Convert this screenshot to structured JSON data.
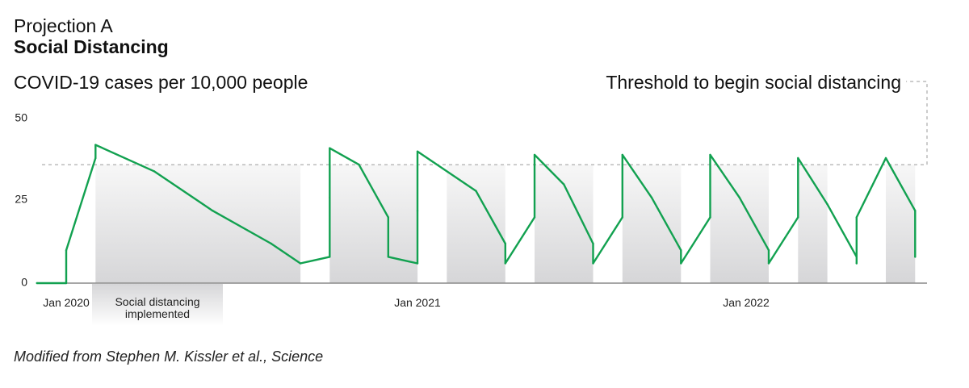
{
  "header": {
    "kicker": "Projection A",
    "title": "Social Distancing"
  },
  "source": "Modified from Stephen M. Kissler et al., Science",
  "colors": {
    "line": "#12a150",
    "band_top": "#f7f7f7",
    "band_bottom": "#d6d6d8",
    "axis": "#888888",
    "threshold": "#9a9a9a"
  },
  "chart_data": {
    "type": "line",
    "ylabel": "COVID-19 cases per 10,000 people",
    "ylim": [
      0,
      50
    ],
    "y_ticks": [
      "0",
      "25",
      "50"
    ],
    "x_ticks": [
      "Jan 2020",
      "Jan 2021",
      "Jan 2022"
    ],
    "threshold": {
      "label": "Threshold to begin social distancing",
      "value": 36
    },
    "band_annotation": {
      "line1": "Social distancing",
      "line2": "implemented"
    },
    "series": [
      {
        "points": [
          [
            "2019-12",
            0
          ],
          [
            "2020-01",
            0
          ],
          [
            "2020-01",
            10
          ],
          [
            "2020-02",
            38
          ],
          [
            "2020-02",
            42
          ],
          [
            "2020-04",
            34
          ],
          [
            "2020-06",
            22
          ],
          [
            "2020-08",
            12
          ],
          [
            "2020-09",
            6
          ],
          [
            "2020-10",
            8
          ],
          [
            "2020-10",
            26
          ],
          [
            "2020-10",
            41
          ],
          [
            "2020-11",
            36
          ],
          [
            "2020-12",
            20
          ],
          [
            "2020-12",
            8
          ],
          [
            "2021-01",
            6
          ],
          [
            "2021-01",
            22
          ],
          [
            "2021-01",
            40
          ],
          [
            "2021-03",
            28
          ],
          [
            "2021-04",
            12
          ],
          [
            "2021-04",
            6
          ],
          [
            "2021-05",
            20
          ],
          [
            "2021-05",
            39
          ],
          [
            "2021-06",
            30
          ],
          [
            "2021-07",
            12
          ],
          [
            "2021-07",
            6
          ],
          [
            "2021-08",
            20
          ],
          [
            "2021-08",
            39
          ],
          [
            "2021-09",
            26
          ],
          [
            "2021-10",
            10
          ],
          [
            "2021-10",
            6
          ],
          [
            "2021-11",
            20
          ],
          [
            "2021-11",
            39
          ],
          [
            "2021-12",
            26
          ],
          [
            "2022-01",
            10
          ],
          [
            "2022-01",
            6
          ],
          [
            "2022-02",
            20
          ],
          [
            "2022-02",
            38
          ],
          [
            "2022-03",
            24
          ],
          [
            "2022-04",
            8
          ],
          [
            "2022-04",
            6
          ],
          [
            "2022-04",
            20
          ],
          [
            "2022-05",
            38
          ],
          [
            "2022-06",
            22
          ],
          [
            "2022-06",
            8
          ]
        ]
      }
    ],
    "distancing_periods": [
      [
        "2020-02",
        "2020-09"
      ],
      [
        "2020-10",
        "2021-01"
      ],
      [
        "2021-02",
        "2021-04"
      ],
      [
        "2021-05",
        "2021-07"
      ],
      [
        "2021-08",
        "2021-10"
      ],
      [
        "2021-11",
        "2022-01"
      ],
      [
        "2022-02",
        "2022-03"
      ],
      [
        "2022-05",
        "2022-06"
      ]
    ]
  }
}
